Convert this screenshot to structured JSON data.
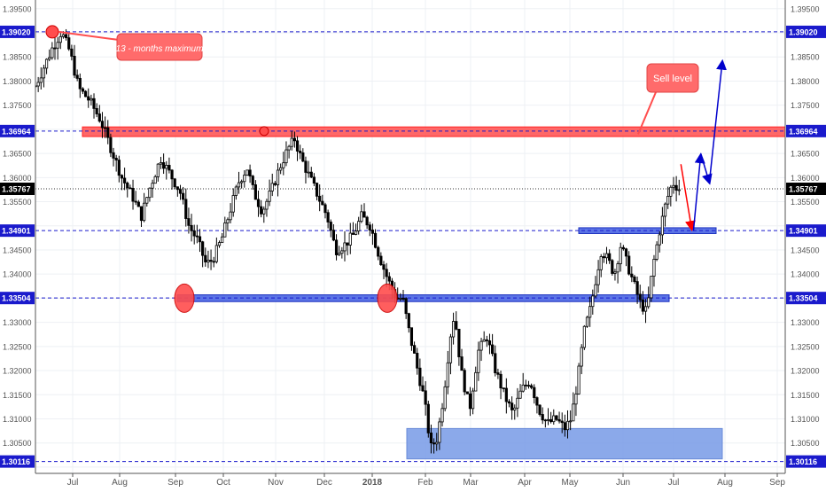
{
  "chart_data": {
    "type": "candlestick",
    "y_axis": {
      "ticks": [
        1.395,
        1.3902,
        1.385,
        1.38,
        1.375,
        1.36964,
        1.365,
        1.36,
        1.35767,
        1.355,
        1.34901,
        1.345,
        1.34,
        1.33504,
        1.33,
        1.325,
        1.32,
        1.315,
        1.31,
        1.305,
        1.30116
      ],
      "tick_labels": [
        "1.39500",
        "1.39020",
        "1.38500",
        "1.38000",
        "1.37500",
        "1.36964",
        "1.36500",
        "1.36000",
        "1.35767",
        "1.35500",
        "1.34901",
        "1.34500",
        "1.34000",
        "1.33504",
        "1.33000",
        "1.32500",
        "1.32000",
        "1.31500",
        "1.31000",
        "1.30500",
        "1.30116"
      ],
      "ylim": [
        1.2987,
        1.3968
      ]
    },
    "x_axis": {
      "labels": [
        "Jul",
        "Aug",
        "Sep",
        "Oct",
        "Nov",
        "Dec",
        "2018",
        "Feb",
        "Mar",
        "Apr",
        "May",
        "Jun",
        "Jul",
        "Aug",
        "Sep"
      ]
    },
    "price_levels": [
      {
        "label": "1.39020",
        "value": 1.3902,
        "color": "#ff0000"
      },
      {
        "label": "1.36964",
        "value": 1.36964,
        "color": "#0000ff"
      },
      {
        "label": "1.35767",
        "value": 1.35767,
        "color": "#000000"
      },
      {
        "label": "1.34901",
        "value": 1.34901,
        "color": "#0000ff"
      },
      {
        "label": "1.33504",
        "value": 1.33504,
        "color": "#0000ff"
      },
      {
        "label": "1.30116",
        "value": 1.30116,
        "color": "#0000ff"
      }
    ],
    "annotations": {
      "max_label": "13 - months maximum",
      "sell_label": "Sell level"
    },
    "series_path": [
      [
        0,
        1.379
      ],
      [
        0.8,
        1.387
      ],
      [
        1.2,
        1.3902
      ],
      [
        1.6,
        1.386
      ],
      [
        2.0,
        1.3785
      ],
      [
        2.5,
        1.376
      ],
      [
        3.0,
        1.372
      ],
      [
        3.5,
        1.366
      ],
      [
        4.0,
        1.36
      ],
      [
        4.5,
        1.356
      ],
      [
        4.9,
        1.352
      ],
      [
        5.3,
        1.358
      ],
      [
        5.8,
        1.364
      ],
      [
        6.2,
        1.361
      ],
      [
        6.7,
        1.357
      ],
      [
        7.1,
        1.35
      ],
      [
        7.5,
        1.347
      ],
      [
        7.9,
        1.342
      ],
      [
        8.2,
        1.343
      ],
      [
        8.6,
        1.347
      ],
      [
        9.0,
        1.353
      ],
      [
        9.4,
        1.359
      ],
      [
        9.8,
        1.362
      ],
      [
        10.1,
        1.357
      ],
      [
        10.5,
        1.353
      ],
      [
        10.9,
        1.357
      ],
      [
        11.3,
        1.362
      ],
      [
        11.7,
        1.366
      ],
      [
        12.0,
        1.368
      ],
      [
        12.3,
        1.364
      ],
      [
        12.7,
        1.36
      ],
      [
        13.0,
        1.357
      ],
      [
        13.5,
        1.352
      ],
      [
        13.9,
        1.345
      ],
      [
        14.3,
        1.346
      ],
      [
        14.7,
        1.348
      ],
      [
        15.1,
        1.352
      ],
      [
        15.5,
        1.35
      ],
      [
        15.9,
        1.344
      ],
      [
        16.3,
        1.339
      ],
      [
        16.7,
        1.335
      ],
      [
        17.0,
        1.335
      ],
      [
        17.3,
        1.328
      ],
      [
        17.7,
        1.32
      ],
      [
        18.0,
        1.314
      ],
      [
        18.3,
        1.304
      ],
      [
        18.6,
        1.306
      ],
      [
        18.9,
        1.315
      ],
      [
        19.2,
        1.327
      ],
      [
        19.4,
        1.332
      ],
      [
        19.7,
        1.32
      ],
      [
        20.1,
        1.312
      ],
      [
        20.5,
        1.324
      ],
      [
        20.9,
        1.327
      ],
      [
        21.3,
        1.32
      ],
      [
        21.7,
        1.315
      ],
      [
        22.1,
        1.311
      ],
      [
        22.5,
        1.316
      ],
      [
        22.9,
        1.318
      ],
      [
        23.3,
        1.312
      ],
      [
        23.7,
        1.309
      ],
      [
        24.1,
        1.31
      ],
      [
        24.5,
        1.308
      ],
      [
        24.8,
        1.31
      ],
      [
        25.1,
        1.318
      ],
      [
        25.4,
        1.328
      ],
      [
        25.7,
        1.333
      ],
      [
        25.9,
        1.338
      ],
      [
        26.2,
        1.345
      ],
      [
        26.5,
        1.343
      ],
      [
        26.8,
        1.34
      ],
      [
        27.1,
        1.346
      ],
      [
        27.4,
        1.342
      ],
      [
        27.7,
        1.338
      ],
      [
        28.0,
        1.334
      ],
      [
        28.3,
        1.332
      ],
      [
        28.6,
        1.342
      ],
      [
        28.9,
        1.349
      ],
      [
        29.2,
        1.355
      ],
      [
        29.5,
        1.359
      ],
      [
        29.8,
        1.3577
      ]
    ],
    "forecast_path": [
      [
        29.8,
        1.358
      ],
      [
        30.3,
        1.349
      ],
      [
        30.8,
        1.365
      ],
      [
        31.2,
        1.359
      ],
      [
        31.8,
        1.384
      ]
    ]
  }
}
